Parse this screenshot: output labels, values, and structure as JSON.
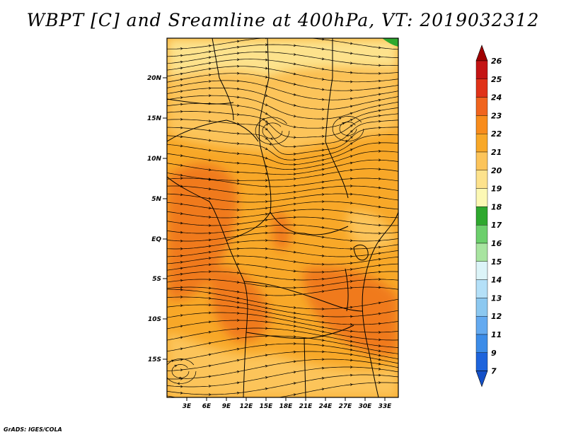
{
  "title": "WBPT [C] and Sreamline at 400hPa, VT: 2019032312",
  "credit": "GrADS: IGES/COLA",
  "map": {
    "lat_labels": [
      "20N",
      "15N",
      "10N",
      "5N",
      "EQ",
      "5S",
      "10S",
      "15S"
    ],
    "lon_labels": [
      "3E",
      "6E",
      "9E",
      "12E",
      "15E",
      "18E",
      "21E",
      "24E",
      "27E",
      "30E",
      "33E"
    ],
    "lat_range": [
      -19,
      24.5
    ],
    "lon_range": [
      0,
      34.5
    ]
  },
  "colorbar": {
    "labels": [
      "26",
      "25",
      "24",
      "23",
      "22",
      "21",
      "20",
      "19",
      "18",
      "17",
      "16",
      "15",
      "14",
      "13",
      "12",
      "11",
      "9",
      "7"
    ],
    "colors": [
      "#a00000",
      "#c41414",
      "#e03218",
      "#f0641e",
      "#f88c1c",
      "#f8a828",
      "#fcc45a",
      "#fde28c",
      "#fcf8b4",
      "#2ea82e",
      "#6ccf6c",
      "#a8e4a0",
      "#dcf4f8",
      "#b4e0f8",
      "#8cc8f0",
      "#64aaf0",
      "#3c8ce8",
      "#1e64dc",
      "#1450c8"
    ]
  },
  "legend_colors": {
    "background": "#f8a828",
    "warm_region": "#f07a1e",
    "cool_region": "#fcc45a",
    "pale_region": "#fde28c",
    "green_corner": "#2ea82e",
    "outline": "#000000"
  }
}
